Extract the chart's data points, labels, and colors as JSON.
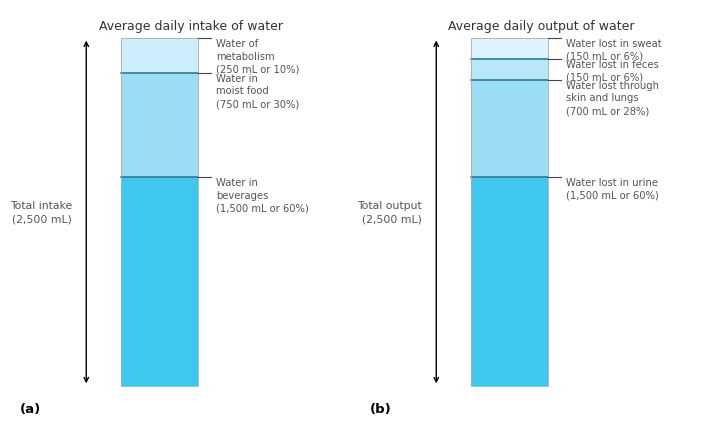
{
  "left_title": "Average daily intake of water",
  "right_title": "Average daily output of water",
  "left_total_label": "Total intake\n(2,500 mL)",
  "right_total_label": "Total output\n(2,500 mL)",
  "left_segments": [
    {
      "value": 1500,
      "color": "#3ec8f0",
      "label": "Water in\nbeverages\n(1,500 mL or 60%)",
      "pct": 0.6,
      "tick_at_top": true
    },
    {
      "value": 750,
      "color": "#9addf5",
      "label": "Water in\nmoist food\n(750 mL or 30%)",
      "pct": 0.3,
      "tick_at_top": true
    },
    {
      "value": 250,
      "color": "#cdeefb",
      "label": "Water of\nmetabolism\n(250 mL or 10%)",
      "pct": 0.1,
      "tick_at_top": false
    }
  ],
  "right_segments": [
    {
      "value": 1500,
      "color": "#3ec8f0",
      "label": "Water lost in urine\n(1,500 mL or 60%)",
      "pct": 0.6,
      "tick_at_top": true
    },
    {
      "value": 700,
      "color": "#9addf5",
      "label": "Water lost through\nskin and lungs\n(700 mL or 28%)",
      "pct": 0.28,
      "tick_at_top": true
    },
    {
      "value": 150,
      "color": "#b8e8f8",
      "label": "Water lost in feces\n(150 mL or 6%)",
      "pct": 0.06,
      "tick_at_top": true
    },
    {
      "value": 150,
      "color": "#ddf4fc",
      "label": "Water lost in sweat\n(150 mL or 6%)",
      "pct": 0.06,
      "tick_at_top": false
    }
  ],
  "separator_color": "#2a7a96",
  "label_color": "#555555",
  "title_color": "#333333",
  "panel_a": "(a)",
  "panel_b": "(b)",
  "bg_color": "#ffffff"
}
